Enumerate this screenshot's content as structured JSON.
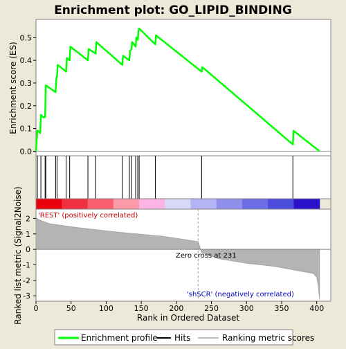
{
  "chart_data": {
    "type": "line",
    "title": "Enrichment plot: GO_LIPID_BINDING",
    "xlabel": "Rank in Ordered Dataset",
    "ylabel_top": "Enrichment score (ES)",
    "ylabel_bottom": "Ranked list metric (Signal2Noise)",
    "top_panel": {
      "ylim": [
        -0.02,
        0.58
      ],
      "yticks": [
        "0.0",
        "0.1",
        "0.2",
        "0.3",
        "0.4",
        "0.5"
      ],
      "ytick_values": [
        0.0,
        0.1,
        0.2,
        0.3,
        0.4,
        0.5
      ],
      "series": [
        {
          "name": "Enrichment profile",
          "color": "#00ff00",
          "x": [
            0,
            2,
            3,
            6,
            7,
            10,
            13,
            14,
            28,
            29,
            30,
            31,
            43,
            44,
            48,
            49,
            74,
            75,
            85,
            86,
            123,
            124,
            133,
            134,
            136,
            137,
            142,
            143,
            145,
            146,
            147,
            170,
            171,
            236,
            237,
            366,
            367,
            404
          ],
          "y": [
            0.0,
            0.09,
            0.09,
            0.08,
            0.16,
            0.15,
            0.15,
            0.29,
            0.26,
            0.32,
            0.33,
            0.38,
            0.35,
            0.41,
            0.4,
            0.46,
            0.4,
            0.45,
            0.43,
            0.48,
            0.38,
            0.42,
            0.4,
            0.44,
            0.45,
            0.48,
            0.46,
            0.5,
            0.49,
            0.53,
            0.54,
            0.47,
            0.51,
            0.35,
            0.37,
            0.03,
            0.09,
            0.0
          ]
        }
      ]
    },
    "hits": [
      2,
      7,
      13,
      14,
      28,
      30,
      43,
      48,
      74,
      85,
      123,
      133,
      136,
      142,
      145,
      147,
      170,
      236,
      366
    ],
    "heat_bands": [
      "#e8000a",
      "#f03040",
      "#f86070",
      "#fc9aa8",
      "#fbb4e4",
      "#d8d8f8",
      "#b4b4f4",
      "#9090ec",
      "#6c6ce4",
      "#4c4cdc",
      "#2a10c8"
    ],
    "bottom_panel": {
      "ylim": [
        -3.35,
        2.6
      ],
      "yticks": [
        "2",
        "1",
        "0",
        "-1",
        "-2",
        "-3"
      ],
      "ytick_values": [
        2,
        1,
        0,
        -1,
        -2,
        -3
      ],
      "metric_knots_x": [
        0,
        5,
        20,
        60,
        120,
        180,
        231,
        236,
        260,
        300,
        340,
        370,
        395,
        400,
        402,
        404
      ],
      "metric_knots_y": [
        2.05,
        1.9,
        1.65,
        1.4,
        1.1,
        0.85,
        0.5,
        -0.2,
        -0.6,
        -0.9,
        -1.1,
        -1.35,
        -1.55,
        -1.8,
        -2.3,
        -3.2
      ],
      "positive_label": "'REST' (positively correlated)",
      "negative_label": "'shSCR' (negatively correlated)",
      "zero_cross_label": "Zero cross at 231",
      "zero_cross": 231
    },
    "xlim": [
      0,
      420
    ],
    "xticks": [
      "0",
      "50",
      "100",
      "150",
      "200",
      "250",
      "300",
      "350",
      "400"
    ],
    "xtick_values": [
      0,
      50,
      100,
      150,
      200,
      250,
      300,
      350,
      400
    ],
    "legend": {
      "placement": "bottom",
      "items": [
        {
          "label": "Enrichment profile",
          "color": "#00ff00"
        },
        {
          "label": "Hits",
          "color": "#000000"
        },
        {
          "label": "Ranking metric scores",
          "color": "#c0c0c0"
        }
      ]
    },
    "colors": {
      "background": "#ece9d8",
      "plot_bg": "#ffffff",
      "positive_label": "#c00000",
      "negative_label": "#0000c0",
      "metric_fill": "#b4b4b4",
      "zero_line": "#a0a0a0"
    }
  }
}
